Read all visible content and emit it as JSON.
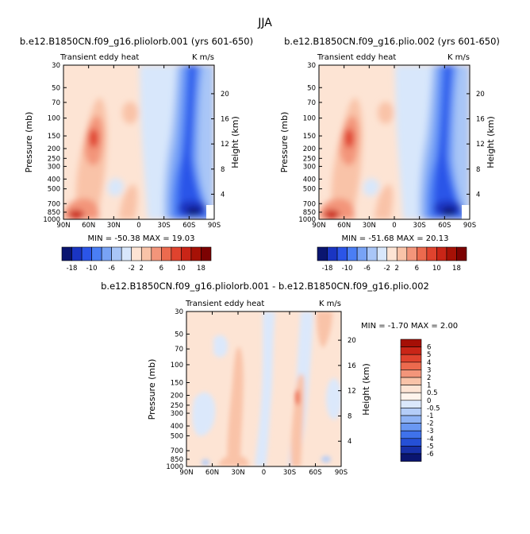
{
  "main_title": "JJA",
  "chart_data": [
    {
      "type": "heatmap",
      "case": "b.e12.B1850CN.f09_g16.pliolorb.001 (yrs 601-650)",
      "left_label": "Transient eddy heat",
      "right_label": "K m/s",
      "min_max": "MIN = -50.38   MAX =  19.03",
      "ylabel": "Pressure (mb)",
      "ylabel_right": "Height (km)",
      "xticks": [
        "90N",
        "60N",
        "30N",
        "0",
        "30S",
        "60S",
        "90S"
      ],
      "yticks": [
        "30",
        "50",
        "70",
        "100",
        "150",
        "200",
        "250",
        "300",
        "400",
        "500",
        "700",
        "850",
        "1000"
      ],
      "height_ticks": [
        "4",
        "8",
        "12",
        "16",
        "20"
      ],
      "colorbar_labels": [
        "-18",
        "-10",
        "-6",
        "-2",
        "2",
        "6",
        "10",
        "18"
      ],
      "colorbar_colors": [
        "#0a1570",
        "#1a35c2",
        "#2b55e8",
        "#4a7ef5",
        "#78a3f5",
        "#a9c6f7",
        "#d8e7fb",
        "#fde4d4",
        "#f9c3a8",
        "#f3957a",
        "#ec6a4e",
        "#e0432e",
        "#c92517",
        "#a61106",
        "#7c0202"
      ]
    },
    {
      "type": "heatmap",
      "case": "b.e12.B1850CN.f09_g16.plio.002 (yrs 601-650)",
      "left_label": "Transient eddy heat",
      "right_label": "K m/s",
      "min_max": "MIN = -51.68   MAX =  20.13",
      "ylabel": "Pressure (mb)",
      "ylabel_right": "Height (km)",
      "xticks": [
        "90N",
        "60N",
        "30N",
        "0",
        "30S",
        "60S",
        "90S"
      ],
      "yticks": [
        "30",
        "50",
        "70",
        "100",
        "150",
        "200",
        "250",
        "300",
        "400",
        "500",
        "700",
        "850",
        "1000"
      ],
      "height_ticks": [
        "4",
        "8",
        "12",
        "16",
        "20"
      ],
      "colorbar_labels": [
        "-18",
        "-10",
        "-6",
        "-2",
        "2",
        "6",
        "10",
        "18"
      ],
      "colorbar_colors": [
        "#0a1570",
        "#1a35c2",
        "#2b55e8",
        "#4a7ef5",
        "#78a3f5",
        "#a9c6f7",
        "#d8e7fb",
        "#fde4d4",
        "#f9c3a8",
        "#f3957a",
        "#ec6a4e",
        "#e0432e",
        "#c92517",
        "#a61106",
        "#7c0202"
      ]
    },
    {
      "type": "heatmap",
      "case": "b.e12.B1850CN.f09_g16.pliolorb.001 - b.e12.B1850CN.f09_g16.plio.002",
      "left_label": "Transient eddy heat",
      "right_label": "K m/s",
      "min_max": "MIN =  -1.70   MAX =   2.00",
      "ylabel": "Pressure (mb)",
      "ylabel_right": "Height (km)",
      "xticks": [
        "90N",
        "60N",
        "30N",
        "0",
        "30S",
        "60S",
        "90S"
      ],
      "yticks": [
        "30",
        "50",
        "70",
        "100",
        "150",
        "200",
        "250",
        "300",
        "400",
        "500",
        "700",
        "850",
        "1000"
      ],
      "height_ticks": [
        "4",
        "8",
        "12",
        "16",
        "20"
      ],
      "colorbar_labels": [
        "6",
        "5",
        "4",
        "3",
        "2",
        "1",
        "0.5",
        "0",
        "-0.5",
        "-1",
        "-2",
        "-3",
        "-4",
        "-5",
        "-6"
      ],
      "colorbar_colors": [
        "#a50f06",
        "#c92517",
        "#e0432e",
        "#ec6a4e",
        "#f3957a",
        "#f9c3a8",
        "#fde4d4",
        "#fff4ec",
        "#dbe8fb",
        "#b4cdf8",
        "#8fb3f5",
        "#6a98f3",
        "#3f72eb",
        "#2550d6",
        "#1730a8",
        "#0a1570"
      ]
    }
  ]
}
